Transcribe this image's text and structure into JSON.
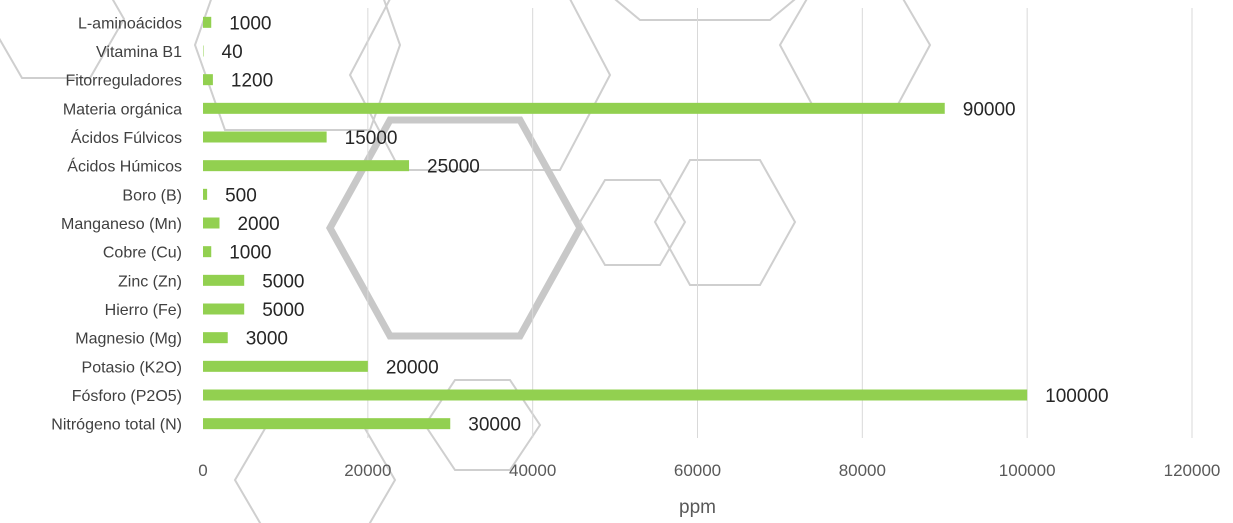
{
  "chart_data": {
    "type": "bar",
    "orientation": "horizontal",
    "title": "",
    "xlabel": "ppm",
    "ylabel": "",
    "categories": [
      "Nitrógeno total (N)",
      "Fósforo (P2O5)",
      "Potasio (K2O)",
      "Magnesio (Mg)",
      "Hierro (Fe)",
      "Zinc (Zn)",
      "Cobre (Cu)",
      "Manganeso (Mn)",
      "Boro (B)",
      "Ácidos Húmicos",
      "Ácidos Fúlvicos",
      "Materia orgánica",
      "Fitorreguladores",
      "Vitamina B1",
      "L-aminoácidos"
    ],
    "values": [
      30000,
      100000,
      20000,
      3000,
      5000,
      5000,
      1000,
      2000,
      500,
      25000,
      15000,
      90000,
      1200,
      40,
      1000
    ],
    "xlim": [
      0,
      120000
    ],
    "xticks": [
      "0",
      "20000",
      "40000",
      "60000",
      "80000",
      "100000",
      "120000"
    ],
    "grid": true,
    "legend": "none",
    "bar_color": "#92d050"
  }
}
